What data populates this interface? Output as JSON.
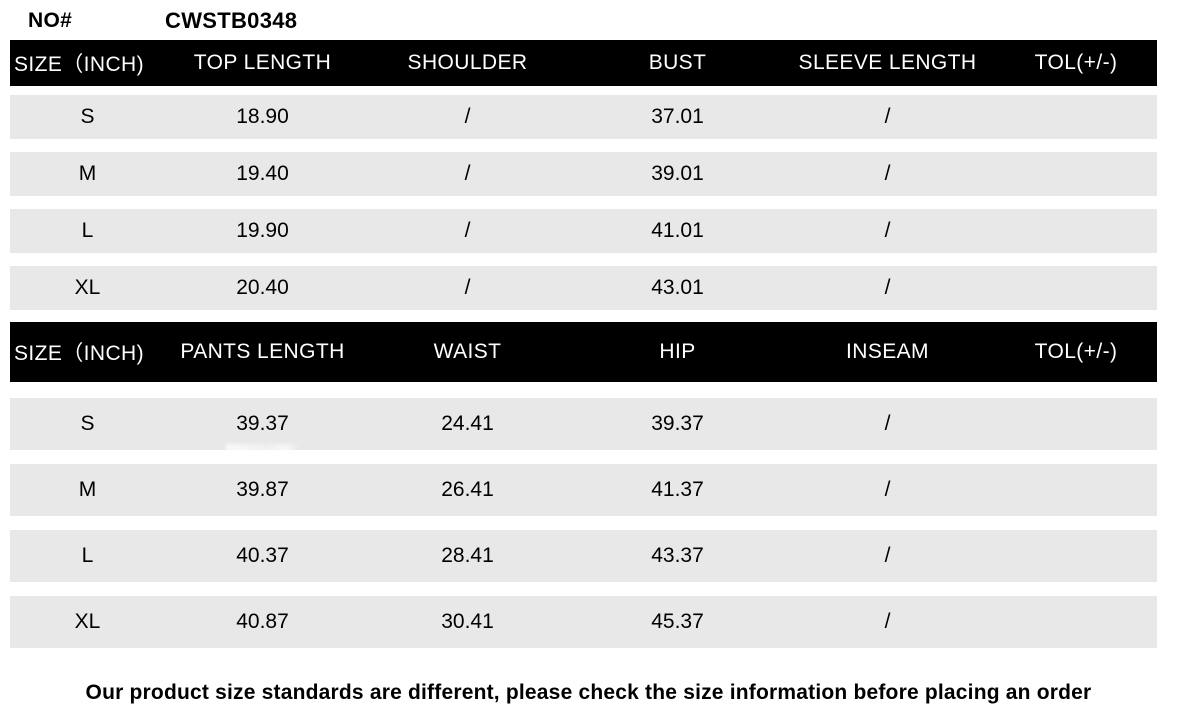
{
  "page": {
    "no_label": "NO#",
    "product_code": "CWSTB0348",
    "footer_note": "Our product size standards are different, please check the size information before placing an order"
  },
  "colors": {
    "header_bg": "#000000",
    "header_text": "#ffffff",
    "row_bg": "#e8e8e8",
    "body_text": "#000000",
    "page_bg": "#ffffff"
  },
  "top_table": {
    "headers": [
      "SIZE（INCH)",
      "TOP LENGTH",
      "SHOULDER",
      "BUST",
      "SLEEVE LENGTH",
      "TOL(+/-)"
    ],
    "rows": [
      [
        "S",
        "18.90",
        "/",
        "37.01",
        "/",
        ""
      ],
      [
        "M",
        "19.40",
        "/",
        "39.01",
        "/",
        ""
      ],
      [
        "L",
        "19.90",
        "/",
        "41.01",
        "/",
        ""
      ],
      [
        "XL",
        "20.40",
        "/",
        "43.01",
        "/",
        ""
      ]
    ]
  },
  "bottom_table": {
    "headers": [
      "SIZE（INCH)",
      "PANTS LENGTH",
      "WAIST",
      "HIP",
      "INSEAM",
      "TOL(+/-)"
    ],
    "rows": [
      [
        "S",
        "39.37",
        "24.41",
        "39.37",
        "/",
        ""
      ],
      [
        "M",
        "39.87",
        "26.41",
        "41.37",
        "/",
        ""
      ],
      [
        "L",
        "40.37",
        "28.41",
        "43.37",
        "/",
        ""
      ],
      [
        "XL",
        "40.87",
        "30.41",
        "45.37",
        "/",
        ""
      ]
    ]
  }
}
